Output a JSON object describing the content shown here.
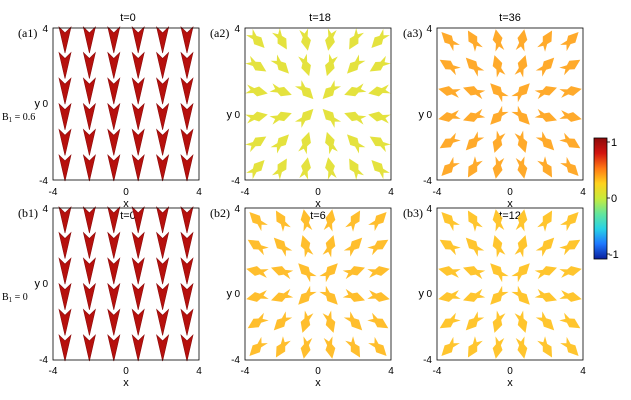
{
  "figure": {
    "row_labels": [
      {
        "prefix": "B",
        "sub": "1",
        "suffix": " = 0.6"
      },
      {
        "prefix": "B",
        "sub": "1",
        "suffix": " = 0"
      }
    ],
    "x_axis_label": "x",
    "y_axis_label": "y",
    "tick_labels": [
      "-4",
      "0",
      "4"
    ],
    "panels": [
      {
        "label": "(a1)",
        "title": "t=0",
        "colormap_value": 0.85
      },
      {
        "label": "(a2)",
        "title": "t=18",
        "colormap_value": 0.12
      },
      {
        "label": "(a3)",
        "title": "t=36",
        "colormap_value": 0.38
      },
      {
        "label": "(b1)",
        "title": "t=0",
        "colormap_value": 0.85
      },
      {
        "label": "(b2)",
        "title": "t=6",
        "colormap_value": 0.32
      },
      {
        "label": "(b3)",
        "title": "t=12",
        "colormap_value": 0.3
      }
    ]
  },
  "colorbar": {
    "ticks": [
      "1",
      "0",
      "-1"
    ],
    "min": -1,
    "max": 1,
    "colors": [
      "#0a1f9c",
      "#1e78ff",
      "#28d2e6",
      "#64e69b",
      "#c8eb3c",
      "#ffd21e",
      "#ff7814",
      "#d2140f",
      "#8c0a0a"
    ]
  }
}
